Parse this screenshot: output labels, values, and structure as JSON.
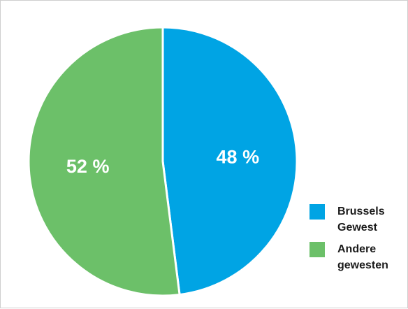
{
  "chart_data": {
    "type": "pie",
    "title": "",
    "slices": [
      {
        "label": "Brussels Gewest",
        "value": 48,
        "display": "48 %",
        "color": "#00a4e4"
      },
      {
        "label": "Andere gewesten",
        "value": 52,
        "display": "52 %",
        "color": "#6cc069"
      }
    ],
    "start_angle_deg": 0,
    "direction": "clockwise",
    "legend_position": "bottom-right"
  }
}
